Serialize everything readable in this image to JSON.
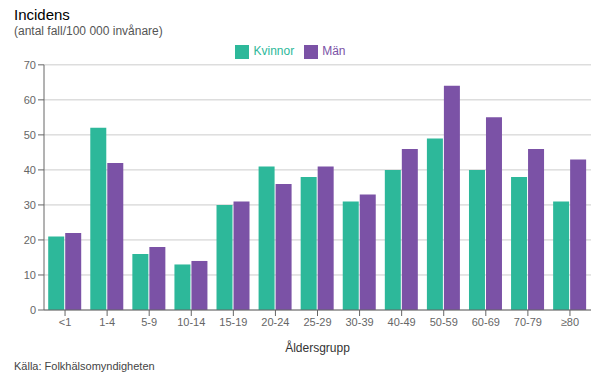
{
  "chart_data": {
    "type": "bar",
    "title": "Incidens",
    "subtitle": "(antal fall/100 000 invånare)",
    "x_label": "Åldersgrupp",
    "source": "Källa: Folkhälsomyndigheten",
    "categories": [
      "<1",
      "1-4",
      "5-9",
      "10-14",
      "15-19",
      "20-24",
      "25-29",
      "30-39",
      "40-49",
      "50-59",
      "60-69",
      "70-79",
      "≥80"
    ],
    "series": [
      {
        "name": "Kvinnor",
        "color": "#2DB89A",
        "values": [
          21,
          52,
          16,
          13,
          30,
          41,
          38,
          31,
          40,
          49,
          40,
          38,
          31
        ]
      },
      {
        "name": "Män",
        "color": "#7B52A6",
        "values": [
          22,
          42,
          18,
          14,
          31,
          36,
          41,
          33,
          46,
          64,
          55,
          46,
          43
        ]
      }
    ],
    "ylim": [
      0,
      70
    ],
    "yticks": [
      0,
      10,
      20,
      30,
      40,
      50,
      60,
      70
    ],
    "grid": true,
    "legend": "top"
  }
}
